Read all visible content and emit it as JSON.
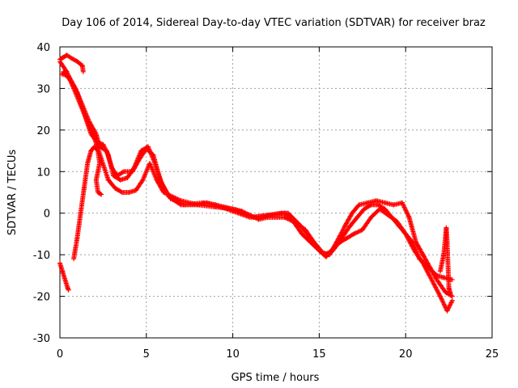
{
  "chart_data": {
    "type": "scatter",
    "title": "Day 106 of 2014, Sidereal Day-to-day VTEC variation (SDTVAR) for receiver braz",
    "xlabel": "GPS time / hours",
    "ylabel": "SDTVAR / TECUs",
    "xlim": [
      0,
      25
    ],
    "ylim": [
      -30,
      40
    ],
    "xticks": [
      "0",
      "5",
      "10",
      "15",
      "20",
      "25"
    ],
    "yticks": [
      "40",
      "30",
      "20",
      "10",
      "0",
      "-10",
      "-20",
      "-30"
    ],
    "grid": true,
    "marker": "+",
    "series": [
      {
        "name": "track-a",
        "color": "#ff0000",
        "points": [
          [
            0.0,
            37
          ],
          [
            0.2,
            37.5
          ],
          [
            0.4,
            38
          ],
          [
            0.7,
            37.2
          ],
          [
            1.0,
            36.5
          ],
          [
            1.3,
            35.5
          ],
          [
            1.35,
            34
          ]
        ]
      },
      {
        "name": "track-b",
        "color": "#ff0000",
        "points": [
          [
            0.0,
            36.5
          ],
          [
            0.4,
            34
          ],
          [
            0.8,
            30
          ],
          [
            1.2,
            26
          ],
          [
            1.6,
            22
          ],
          [
            2.0,
            18
          ],
          [
            2.4,
            13
          ],
          [
            2.8,
            8
          ],
          [
            3.2,
            6
          ],
          [
            3.6,
            5
          ],
          [
            4.0,
            5
          ],
          [
            4.4,
            5.5
          ],
          [
            4.8,
            8
          ],
          [
            5.2,
            12
          ],
          [
            5.6,
            8
          ],
          [
            6.0,
            5
          ],
          [
            7.0,
            3
          ],
          [
            8.0,
            2
          ],
          [
            9.0,
            1.5
          ],
          [
            10.0,
            1
          ],
          [
            10.5,
            0.5
          ],
          [
            11.0,
            -0.5
          ],
          [
            11.5,
            -1.5
          ],
          [
            12.0,
            -1
          ],
          [
            12.5,
            -1
          ],
          [
            13.0,
            -1
          ],
          [
            13.5,
            -2
          ],
          [
            14.0,
            -5
          ],
          [
            14.5,
            -7
          ],
          [
            15.0,
            -9
          ],
          [
            15.4,
            -10.5
          ],
          [
            15.8,
            -8.5
          ],
          [
            16.2,
            -7
          ],
          [
            16.6,
            -6
          ],
          [
            17.0,
            -5
          ],
          [
            17.5,
            -4
          ],
          [
            18.0,
            -1
          ],
          [
            18.5,
            1
          ],
          [
            19.0,
            -0.5
          ],
          [
            19.5,
            -2
          ],
          [
            20.0,
            -5
          ],
          [
            20.5,
            -9
          ],
          [
            21.0,
            -12
          ],
          [
            21.5,
            -16
          ],
          [
            22.0,
            -20
          ],
          [
            22.4,
            -23.5
          ],
          [
            22.7,
            -21
          ]
        ]
      },
      {
        "name": "track-c",
        "color": "#ff0000",
        "points": [
          [
            0.1,
            33.5
          ],
          [
            0.5,
            33
          ],
          [
            0.9,
            30
          ],
          [
            1.3,
            26
          ],
          [
            1.7,
            22
          ],
          [
            2.1,
            19
          ],
          [
            2.3,
            16
          ],
          [
            2.7,
            15
          ],
          [
            3.0,
            11
          ],
          [
            3.3,
            9
          ],
          [
            3.7,
            10
          ],
          [
            4.2,
            10
          ],
          [
            4.6,
            13
          ],
          [
            5.0,
            15.5
          ],
          [
            5.4,
            14
          ],
          [
            5.8,
            8
          ],
          [
            6.3,
            4
          ],
          [
            7.0,
            2
          ],
          [
            8.0,
            2
          ],
          [
            8.5,
            2.5
          ],
          [
            9.0,
            2
          ],
          [
            10.0,
            0.5
          ],
          [
            11.0,
            -1
          ],
          [
            12.0,
            -0.5
          ],
          [
            12.8,
            0
          ],
          [
            13.2,
            0
          ],
          [
            13.8,
            -2.5
          ],
          [
            14.3,
            -5
          ],
          [
            14.8,
            -8
          ],
          [
            15.3,
            -10
          ],
          [
            15.8,
            -9
          ],
          [
            16.3,
            -6
          ],
          [
            16.8,
            -3
          ],
          [
            17.2,
            -1
          ],
          [
            17.6,
            1
          ],
          [
            18.0,
            2
          ],
          [
            18.4,
            2
          ],
          [
            18.8,
            1
          ],
          [
            19.2,
            -1
          ],
          [
            19.6,
            -3
          ],
          [
            20.0,
            -5
          ],
          [
            20.4,
            -7
          ],
          [
            20.8,
            -11
          ],
          [
            21.3,
            -13
          ],
          [
            21.8,
            -15
          ],
          [
            22.2,
            -15.5
          ],
          [
            22.7,
            -16
          ]
        ]
      },
      {
        "name": "track-d",
        "color": "#ff0000",
        "points": [
          [
            0.2,
            34
          ],
          [
            0.6,
            32
          ],
          [
            1.0,
            29
          ],
          [
            1.4,
            24
          ],
          [
            1.8,
            19
          ],
          [
            2.2,
            17
          ],
          [
            2.5,
            16.5
          ],
          [
            2.8,
            14
          ],
          [
            3.1,
            9
          ],
          [
            3.5,
            8
          ],
          [
            3.9,
            8.5
          ],
          [
            4.3,
            11
          ],
          [
            4.7,
            15
          ],
          [
            5.1,
            16
          ],
          [
            5.5,
            12
          ],
          [
            5.9,
            7
          ],
          [
            6.4,
            3.5
          ],
          [
            7.2,
            2
          ],
          [
            8.3,
            2.5
          ],
          [
            9.2,
            1.8
          ],
          [
            10.2,
            0.8
          ],
          [
            11.2,
            -1
          ],
          [
            12.2,
            -0.5
          ],
          [
            13.0,
            0
          ],
          [
            13.6,
            -2
          ],
          [
            14.2,
            -4
          ],
          [
            14.7,
            -7
          ],
          [
            15.2,
            -9.5
          ],
          [
            15.6,
            -10
          ],
          [
            16.0,
            -7
          ],
          [
            16.5,
            -3
          ],
          [
            16.9,
            0
          ],
          [
            17.3,
            2
          ],
          [
            17.8,
            2.5
          ],
          [
            18.3,
            3
          ],
          [
            18.8,
            2.5
          ],
          [
            19.3,
            2
          ],
          [
            19.8,
            2.5
          ],
          [
            20.2,
            -1
          ],
          [
            20.6,
            -7
          ],
          [
            21.0,
            -10
          ],
          [
            21.4,
            -13
          ],
          [
            21.8,
            -16
          ],
          [
            22.3,
            -19
          ],
          [
            22.7,
            -20
          ]
        ]
      },
      {
        "name": "track-e",
        "color": "#ff0000",
        "points": [
          [
            0.8,
            -11
          ],
          [
            1.0,
            -6
          ],
          [
            1.2,
            0
          ],
          [
            1.4,
            6
          ],
          [
            1.6,
            12
          ],
          [
            1.8,
            15
          ],
          [
            2.0,
            16
          ],
          [
            2.2,
            15
          ],
          [
            2.3,
            12
          ],
          [
            2.1,
            8
          ],
          [
            2.2,
            5
          ],
          [
            2.4,
            4.5
          ]
        ]
      },
      {
        "name": "track-f",
        "color": "#ff0000",
        "points": [
          [
            0.0,
            -12
          ],
          [
            0.15,
            -14
          ],
          [
            0.3,
            -16
          ],
          [
            0.45,
            -18
          ],
          [
            0.5,
            -18.5
          ]
        ]
      },
      {
        "name": "track-g",
        "color": "#ff0000",
        "points": [
          [
            22.0,
            -14
          ],
          [
            22.2,
            -10
          ],
          [
            22.3,
            -6
          ],
          [
            22.35,
            -3.5
          ],
          [
            22.4,
            -7
          ],
          [
            22.5,
            -18
          ],
          [
            22.6,
            -19.5
          ]
        ]
      }
    ]
  }
}
